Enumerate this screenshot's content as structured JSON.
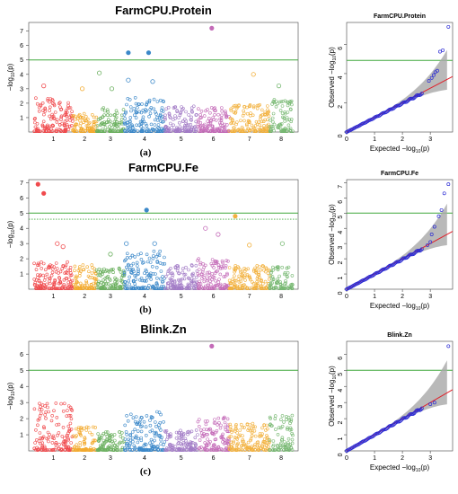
{
  "colors": {
    "chromosomes": [
      "#f35a5d",
      "#ef4f4f",
      "#f5b335",
      "#71b866",
      "#3f8fcf",
      "#9b74c0",
      "#c779c8",
      "#e5475d"
    ],
    "threshold_line": "#41a83d",
    "qq_points": "#2a2ad4",
    "qq_expected": "#e0202a",
    "qq_ci": "#a7a7a7"
  },
  "chart_data": [
    {
      "type": "scatter",
      "kind": "manhattan",
      "title": "FarmCPU.Protein",
      "panel_label": "(a)",
      "ylabel": "−log",
      "ylabel_sub": "10",
      "ylabel_rest": "(p)",
      "ylim": [
        0,
        7.6
      ],
      "yticks": [
        "1",
        "2",
        "3",
        "4",
        "5",
        "6",
        "7"
      ],
      "xtick_labels": [
        "1",
        "2",
        "3",
        "4",
        "5",
        "6",
        "7",
        "8"
      ],
      "threshold": 5.0,
      "background_peaks": [
        2.4,
        1.3,
        1.7,
        2.4,
        1.8,
        1.7,
        1.9,
        2.3
      ],
      "highlighted": [
        {
          "chr": 1,
          "pos": 0.25,
          "value": 3.2
        },
        {
          "chr": 2,
          "pos": 0.4,
          "value": 3.0
        },
        {
          "chr": 3,
          "pos": 0.1,
          "value": 4.1
        },
        {
          "chr": 3,
          "pos": 0.55,
          "value": 3.0
        },
        {
          "chr": 4,
          "pos": 0.1,
          "value": 5.5
        },
        {
          "chr": 4,
          "pos": 0.1,
          "value": 3.6
        },
        {
          "chr": 4,
          "pos": 0.6,
          "value": 5.5
        },
        {
          "chr": 4,
          "pos": 0.7,
          "value": 3.5
        },
        {
          "chr": 6,
          "pos": 0.45,
          "value": 7.2
        },
        {
          "chr": 7,
          "pos": 0.6,
          "value": 4.0
        },
        {
          "chr": 8,
          "pos": 0.4,
          "value": 3.2
        }
      ]
    },
    {
      "type": "scatter",
      "kind": "qq",
      "title": "FarmCPU.Protein",
      "xlabel": "Expected  −log",
      "xlabel_sub": "10",
      "xlabel_rest": "(p)",
      "ylabel": "Observed  −log",
      "ylabel_sub": "10",
      "ylabel_rest": "(p)",
      "xlim": [
        0,
        3.8
      ],
      "ylim": [
        0,
        7.5
      ],
      "xticks": [
        "0",
        "1",
        "2",
        "3"
      ],
      "yticks": [
        "0",
        "2",
        "4",
        "6"
      ],
      "threshold": 4.9,
      "top_points": [
        {
          "x": 2.95,
          "y": 3.5
        },
        {
          "x": 3.05,
          "y": 3.7
        },
        {
          "x": 3.12,
          "y": 3.9
        },
        {
          "x": 3.18,
          "y": 4.1
        },
        {
          "x": 3.25,
          "y": 4.2
        },
        {
          "x": 3.35,
          "y": 5.5
        },
        {
          "x": 3.45,
          "y": 5.6
        },
        {
          "x": 3.65,
          "y": 7.2
        }
      ]
    },
    {
      "type": "scatter",
      "kind": "manhattan",
      "title": "FarmCPU.Fe",
      "panel_label": "(b)",
      "ylabel": "−log",
      "ylabel_sub": "10",
      "ylabel_rest": "(p)",
      "ylim": [
        0,
        7.2
      ],
      "yticks": [
        "1",
        "2",
        "3",
        "4",
        "5",
        "6",
        "7"
      ],
      "xtick_labels": [
        "1",
        "2",
        "3",
        "4",
        "5",
        "6",
        "7",
        "8"
      ],
      "threshold": 5.0,
      "suggestive": 4.6,
      "background_peaks": [
        1.8,
        1.6,
        1.4,
        2.5,
        1.6,
        2.0,
        1.6,
        1.5
      ],
      "highlighted": [
        {
          "chr": 1,
          "pos": 0.1,
          "value": 6.9
        },
        {
          "chr": 1,
          "pos": 0.25,
          "value": 6.3
        },
        {
          "chr": 1,
          "pos": 0.6,
          "value": 3.0
        },
        {
          "chr": 1,
          "pos": 0.75,
          "value": 2.8
        },
        {
          "chr": 3,
          "pos": 0.5,
          "value": 2.3
        },
        {
          "chr": 4,
          "pos": 0.05,
          "value": 3.0
        },
        {
          "chr": 4,
          "pos": 0.55,
          "value": 5.2
        },
        {
          "chr": 4,
          "pos": 0.75,
          "value": 3.0
        },
        {
          "chr": 6,
          "pos": 0.25,
          "value": 4.0
        },
        {
          "chr": 6,
          "pos": 0.65,
          "value": 3.6
        },
        {
          "chr": 7,
          "pos": 0.15,
          "value": 4.8
        },
        {
          "chr": 7,
          "pos": 0.5,
          "value": 2.9
        },
        {
          "chr": 8,
          "pos": 0.55,
          "value": 3.0
        }
      ]
    },
    {
      "type": "scatter",
      "kind": "qq",
      "title": "FarmCPU.Fe",
      "xlabel": "Expected  −log",
      "xlabel_sub": "10",
      "xlabel_rest": "(p)",
      "ylabel": "Observed  −log",
      "ylabel_sub": "10",
      "ylabel_rest": "(p)",
      "xlim": [
        0,
        3.8
      ],
      "ylim": [
        0,
        7.2
      ],
      "xticks": [
        "0",
        "1",
        "2",
        "3"
      ],
      "yticks": [
        "0",
        "1",
        "2",
        "3",
        "4",
        "5",
        "6",
        "7"
      ],
      "threshold": 5.0,
      "top_points": [
        {
          "x": 2.9,
          "y": 2.9
        },
        {
          "x": 3.0,
          "y": 3.1
        },
        {
          "x": 3.05,
          "y": 3.6
        },
        {
          "x": 3.15,
          "y": 4.1
        },
        {
          "x": 3.3,
          "y": 4.8
        },
        {
          "x": 3.4,
          "y": 5.2
        },
        {
          "x": 3.5,
          "y": 6.3
        },
        {
          "x": 3.65,
          "y": 6.9
        }
      ]
    },
    {
      "type": "scatter",
      "kind": "manhattan",
      "title": "Blink.Zn",
      "panel_label": "(c)",
      "ylabel": "−log",
      "ylabel_sub": "10",
      "ylabel_rest": "(p)",
      "ylim": [
        0,
        6.8
      ],
      "yticks": [
        "1",
        "2",
        "3",
        "4",
        "5",
        "6"
      ],
      "xtick_labels": [
        "1",
        "2",
        "3",
        "4",
        "5",
        "6",
        "7",
        "8"
      ],
      "threshold": 5.0,
      "background_peaks": [
        3.0,
        1.5,
        1.2,
        2.6,
        1.3,
        2.1,
        1.7,
        2.2
      ],
      "highlighted": [
        {
          "chr": 6,
          "pos": 0.45,
          "value": 6.5
        }
      ]
    },
    {
      "type": "scatter",
      "kind": "qq",
      "title": "Blink.Zn",
      "xlabel": "Expected  −log",
      "xlabel_sub": "10",
      "xlabel_rest": "(p)",
      "ylabel": "Observed  −log",
      "ylabel_sub": "10",
      "ylabel_rest": "(p)",
      "xlim": [
        0,
        3.8
      ],
      "ylim": [
        0,
        6.8
      ],
      "xticks": [
        "0",
        "1",
        "2",
        "3"
      ],
      "yticks": [
        "0",
        "1",
        "2",
        "3",
        "4",
        "5",
        "6"
      ],
      "threshold": 5.0,
      "top_points": [
        {
          "x": 3.0,
          "y": 2.9
        },
        {
          "x": 3.15,
          "y": 3.0
        },
        {
          "x": 3.65,
          "y": 6.5
        }
      ]
    }
  ]
}
